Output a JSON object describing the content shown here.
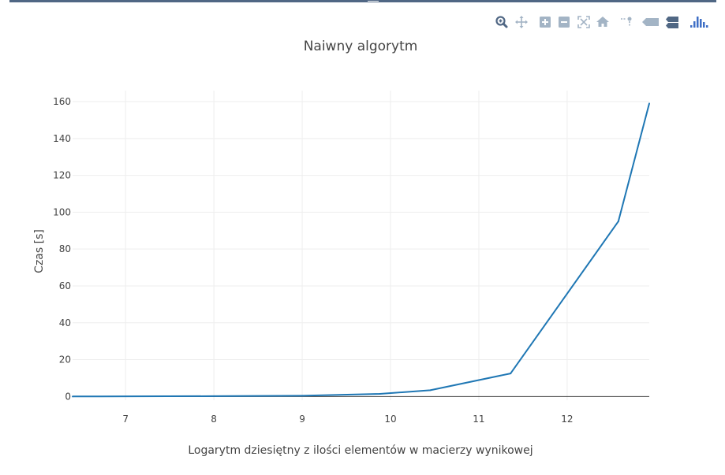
{
  "modebar": {
    "buttons": [
      {
        "name": "zoom-button",
        "icon": "magnifier-icon"
      },
      {
        "name": "pan-button",
        "icon": "pan-arrows-icon"
      },
      {
        "name": "zoom-in-button",
        "icon": "plus-box-icon"
      },
      {
        "name": "zoom-out-button",
        "icon": "minus-box-icon"
      },
      {
        "name": "autoscale-button",
        "icon": "autoscale-icon"
      },
      {
        "name": "reset-axes-button",
        "icon": "home-icon"
      },
      {
        "name": "toggle-spikelines-button",
        "icon": "spikelines-icon"
      },
      {
        "name": "hover-closest-button",
        "icon": "hover-closest-icon"
      },
      {
        "name": "hover-compare-button",
        "icon": "hover-compare-icon"
      },
      {
        "name": "plotly-logo-button",
        "icon": "plotly-logo-icon"
      }
    ],
    "icon_color": "#a3b4c5",
    "logo_color": "#3f6fc6"
  },
  "chart_data": {
    "type": "line",
    "title": "Naiwny algorytm",
    "xlabel": "Logarytm dziesiętny z ilości elementów w macierzy wynikowej",
    "ylabel": "Czas [s]",
    "xlim": [
      6.4,
      12.93
    ],
    "ylim": [
      -2,
      166
    ],
    "xticks": [
      7,
      8,
      9,
      10,
      11,
      12
    ],
    "yticks": [
      0,
      20,
      40,
      60,
      80,
      100,
      120,
      140,
      160
    ],
    "grid": true,
    "series": [
      {
        "color": "#1f77b4",
        "x": [
          6.4,
          8.0,
          9.0,
          9.88,
          10.45,
          11.36,
          12.58,
          12.93
        ],
        "y": [
          0.0,
          0.2,
          0.4,
          1.4,
          3.4,
          12.5,
          95.0,
          159.0
        ]
      }
    ]
  }
}
